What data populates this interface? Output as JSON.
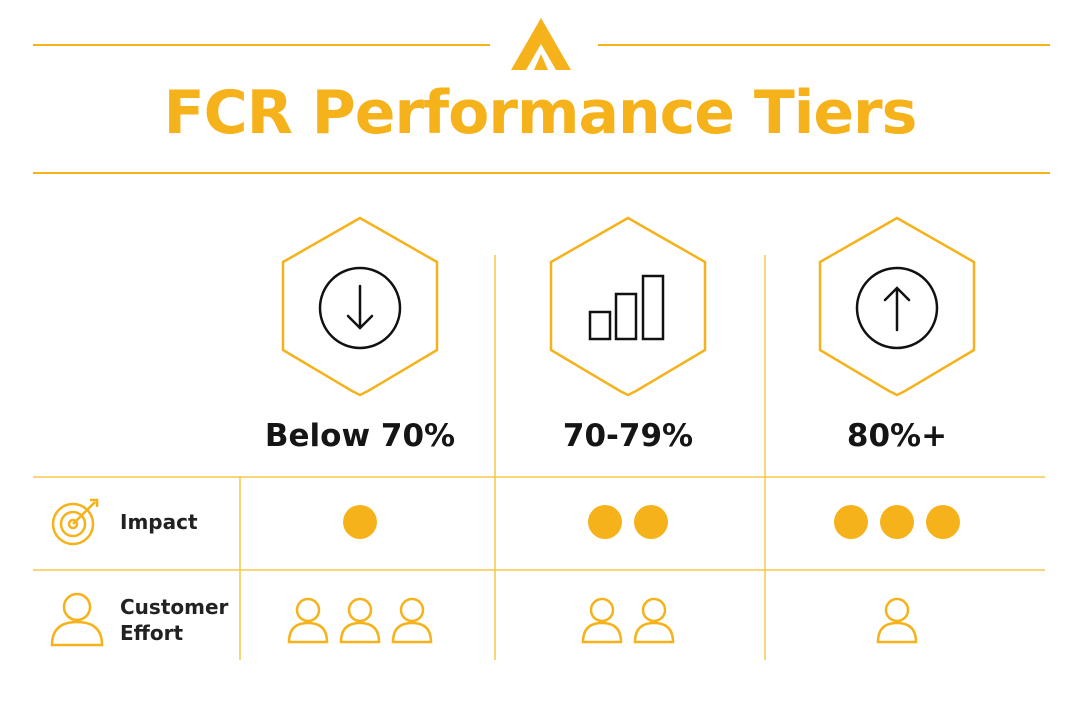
{
  "title": "FCR Performance Tiers",
  "tiers": [
    "Below 70%",
    "70-79%",
    "80%+"
  ],
  "rows": [
    {
      "label": "Impact",
      "counts": [
        1,
        2,
        3
      ]
    },
    {
      "label": "Customer Effort",
      "counts": [
        3,
        2,
        1
      ]
    }
  ]
}
